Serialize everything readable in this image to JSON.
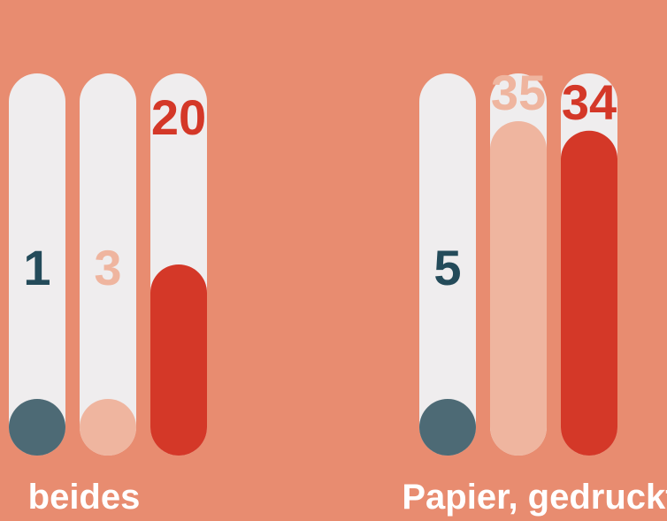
{
  "chart_data": {
    "type": "bar",
    "categories": [
      "beides",
      "Papier, gedruckt"
    ],
    "series": [
      {
        "values": [
          1,
          5
        ],
        "color": "#4d6a75",
        "label_color": "#244b5a"
      },
      {
        "values": [
          3,
          35
        ],
        "color": "#efb59f",
        "label_color": "#efb59f"
      },
      {
        "values": [
          20,
          34
        ],
        "color": "#d43828",
        "label_color": "#d43828"
      }
    ],
    "track_color": "#efedee",
    "background": "#e88c70",
    "ylim": [
      0,
      40
    ],
    "grid": false,
    "legend": "none"
  }
}
